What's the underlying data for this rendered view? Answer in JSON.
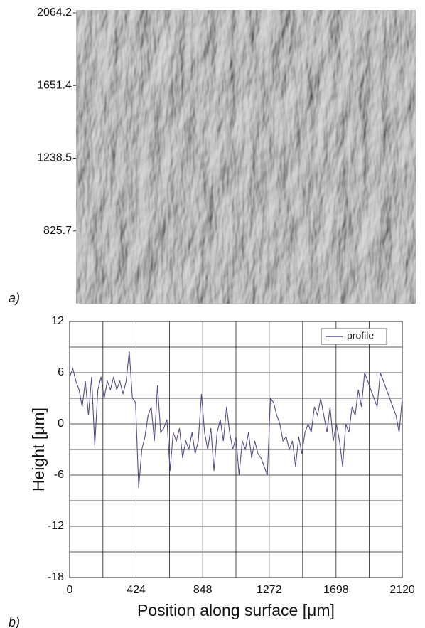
{
  "chart_data": [
    {
      "type": "image",
      "panel_label": "a)",
      "ylim": [
        412.9,
        2064.2
      ],
      "yticks": [
        2064.2,
        1651.4,
        1238.5,
        825.7
      ]
    },
    {
      "type": "line",
      "panel_label": "b)",
      "xlabel": "Position along surface [μm]",
      "ylabel": "Height  [μm]",
      "xlim": [
        0,
        2120
      ],
      "xticks": [
        0,
        424,
        848,
        1272,
        1698,
        2120
      ],
      "ylim": [
        -18,
        12
      ],
      "yticks": [
        -18,
        -12,
        -6,
        0,
        6,
        12
      ],
      "grid": true,
      "legend": "upper right",
      "x": [
        0,
        20,
        40,
        60,
        80,
        100,
        120,
        140,
        160,
        180,
        200,
        220,
        240,
        260,
        280,
        300,
        320,
        340,
        360,
        380,
        400,
        420,
        440,
        460,
        480,
        500,
        520,
        540,
        560,
        580,
        600,
        620,
        640,
        660,
        680,
        700,
        720,
        740,
        760,
        780,
        800,
        820,
        840,
        860,
        880,
        900,
        920,
        940,
        960,
        980,
        1000,
        1020,
        1040,
        1060,
        1080,
        1100,
        1120,
        1140,
        1160,
        1180,
        1200,
        1220,
        1240,
        1260,
        1280,
        1300,
        1320,
        1340,
        1360,
        1380,
        1400,
        1420,
        1440,
        1460,
        1480,
        1500,
        1520,
        1540,
        1560,
        1580,
        1600,
        1620,
        1640,
        1660,
        1680,
        1700,
        1720,
        1740,
        1760,
        1780,
        1800,
        1820,
        1840,
        1860,
        1880,
        1900,
        1920,
        1940,
        1960,
        1980,
        2000,
        2020,
        2040,
        2060,
        2080,
        2100,
        2120
      ],
      "series": [
        {
          "name": "profile",
          "color": "#5a4a8c",
          "values": [
            5.5,
            6.5,
            5,
            4,
            2,
            5,
            1,
            5.5,
            -2.5,
            4,
            5.5,
            3,
            5,
            4,
            5.5,
            4,
            5,
            3.5,
            5,
            8.5,
            3,
            2.5,
            -7.5,
            -3,
            -1.5,
            1,
            2,
            -2,
            4.5,
            -1,
            -0.5,
            0.5,
            -5.5,
            -1,
            -2,
            -0.5,
            -4,
            -2,
            -3,
            -1,
            -3.5,
            -2,
            3.5,
            -1,
            -3,
            -0.5,
            -5.5,
            -1,
            0.5,
            -2,
            2,
            -1,
            -3,
            -1.5,
            -6,
            -2,
            -3,
            -1,
            -4,
            -2,
            -3.5,
            -4,
            -5,
            -6,
            3,
            2.5,
            1,
            0,
            -2,
            -1.5,
            -3,
            -2,
            -5,
            -1.5,
            -3.5,
            -1,
            0,
            -1,
            2,
            1,
            3,
            1,
            -1,
            2,
            -2,
            0,
            -2,
            -5,
            0,
            -1,
            2,
            1,
            4,
            2,
            6,
            5,
            4,
            3,
            2,
            6,
            5,
            4,
            3,
            2,
            1,
            -1,
            3
          ]
        }
      ]
    }
  ]
}
